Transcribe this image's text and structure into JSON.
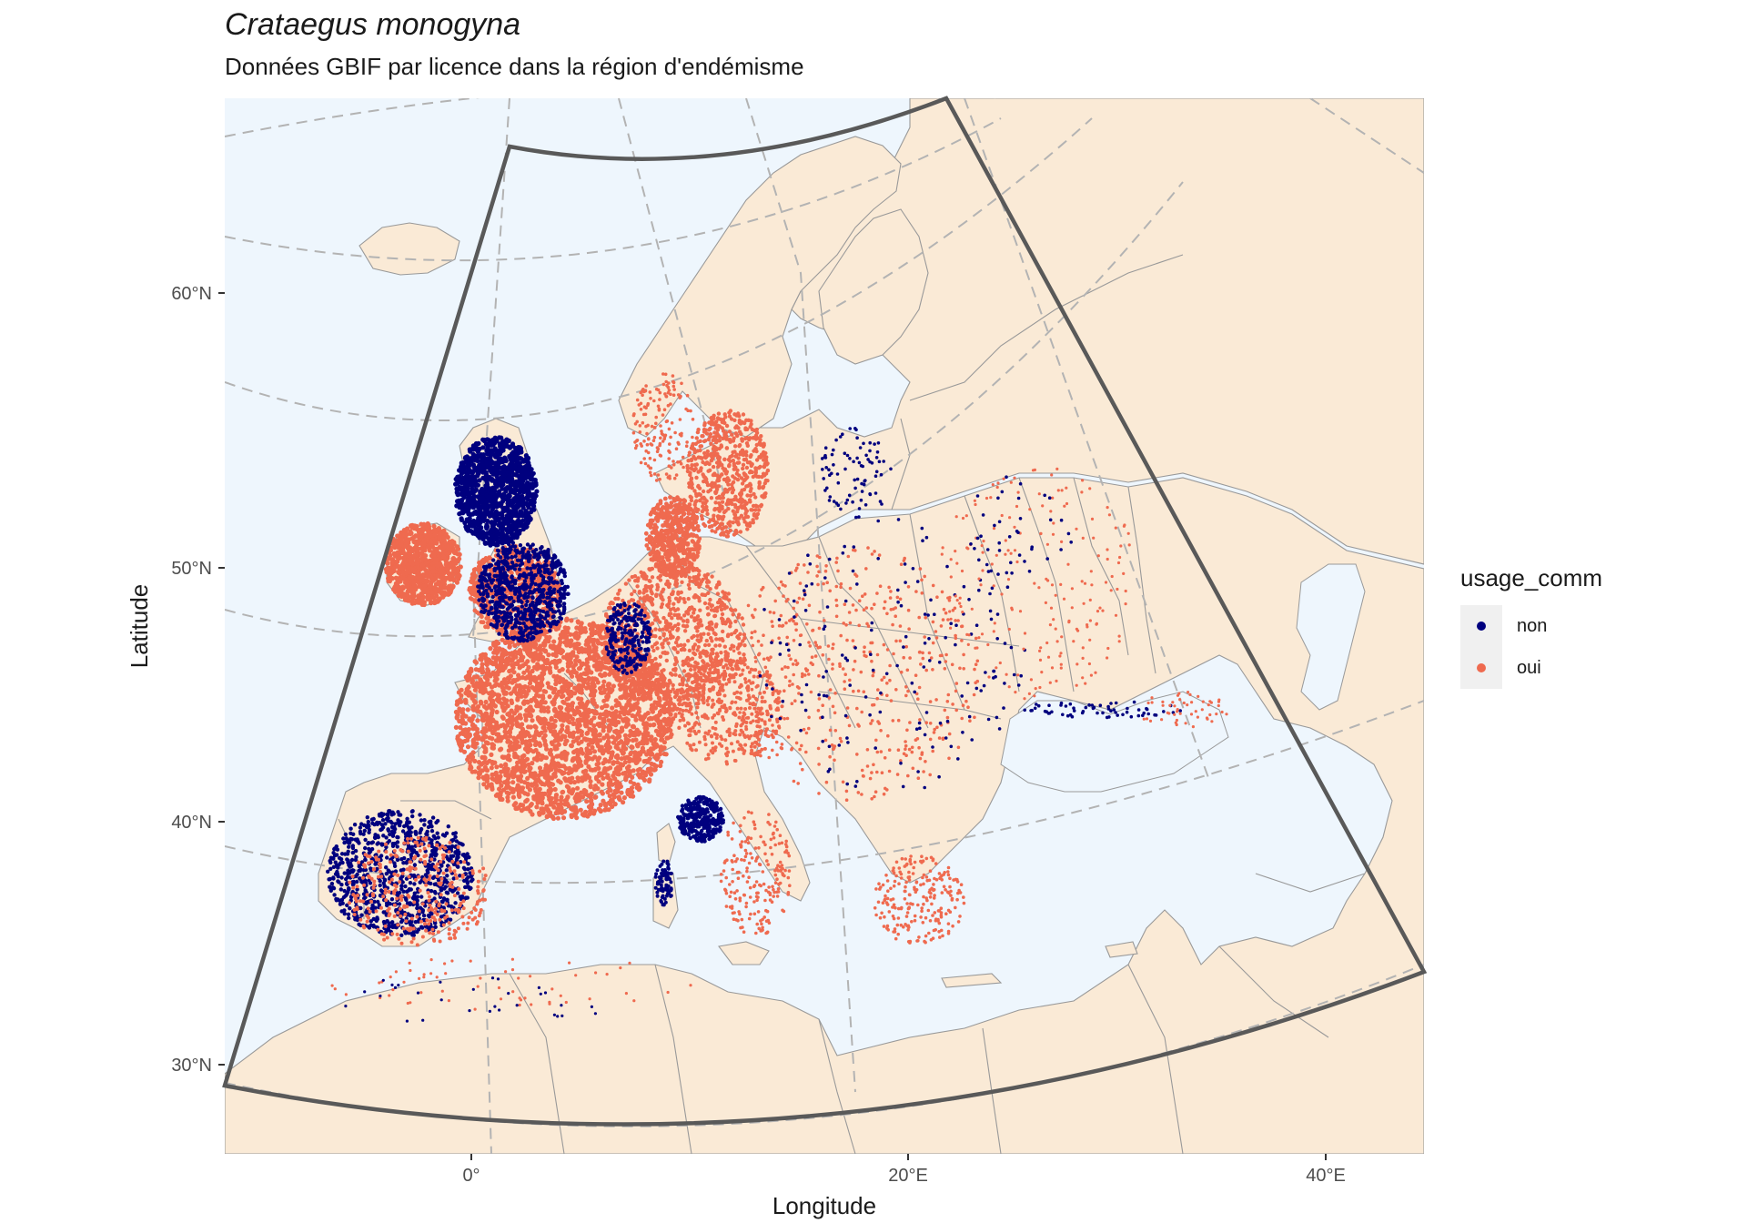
{
  "title": "Crataegus monogyna",
  "subtitle": "Données GBIF par licence dans la région d'endémisme",
  "colors": {
    "sea": "#eef6fd",
    "land": "#faead6",
    "border": "#999999",
    "non": "#00007f",
    "oui": "#ef6a4f",
    "graticule": "#b3b3b3",
    "frame": "#595959"
  },
  "axes": {
    "x_title": "Longitude",
    "y_title": "Latitude",
    "x_ticks": [
      "0°",
      "20°E",
      "40°E"
    ],
    "y_ticks": [
      "60°N",
      "50°N",
      "40°N",
      "30°N"
    ]
  },
  "legend": {
    "title": "usage_comm",
    "items": [
      {
        "label": "non",
        "color": "#00007f"
      },
      {
        "label": "oui",
        "color": "#ef6a4f"
      }
    ]
  },
  "chart_data": {
    "type": "scatter",
    "title": "Crataegus monogyna",
    "subtitle": "Données GBIF par licence dans la région d'endémisme",
    "xlabel": "Longitude",
    "ylabel": "Latitude",
    "x_ticks": [
      0,
      20,
      40
    ],
    "y_ticks": [
      60,
      50,
      40,
      30
    ],
    "series": [
      {
        "name": "non",
        "color": "#00007f"
      },
      {
        "name": "oui",
        "color": "#ef6a4f"
      }
    ]
  }
}
